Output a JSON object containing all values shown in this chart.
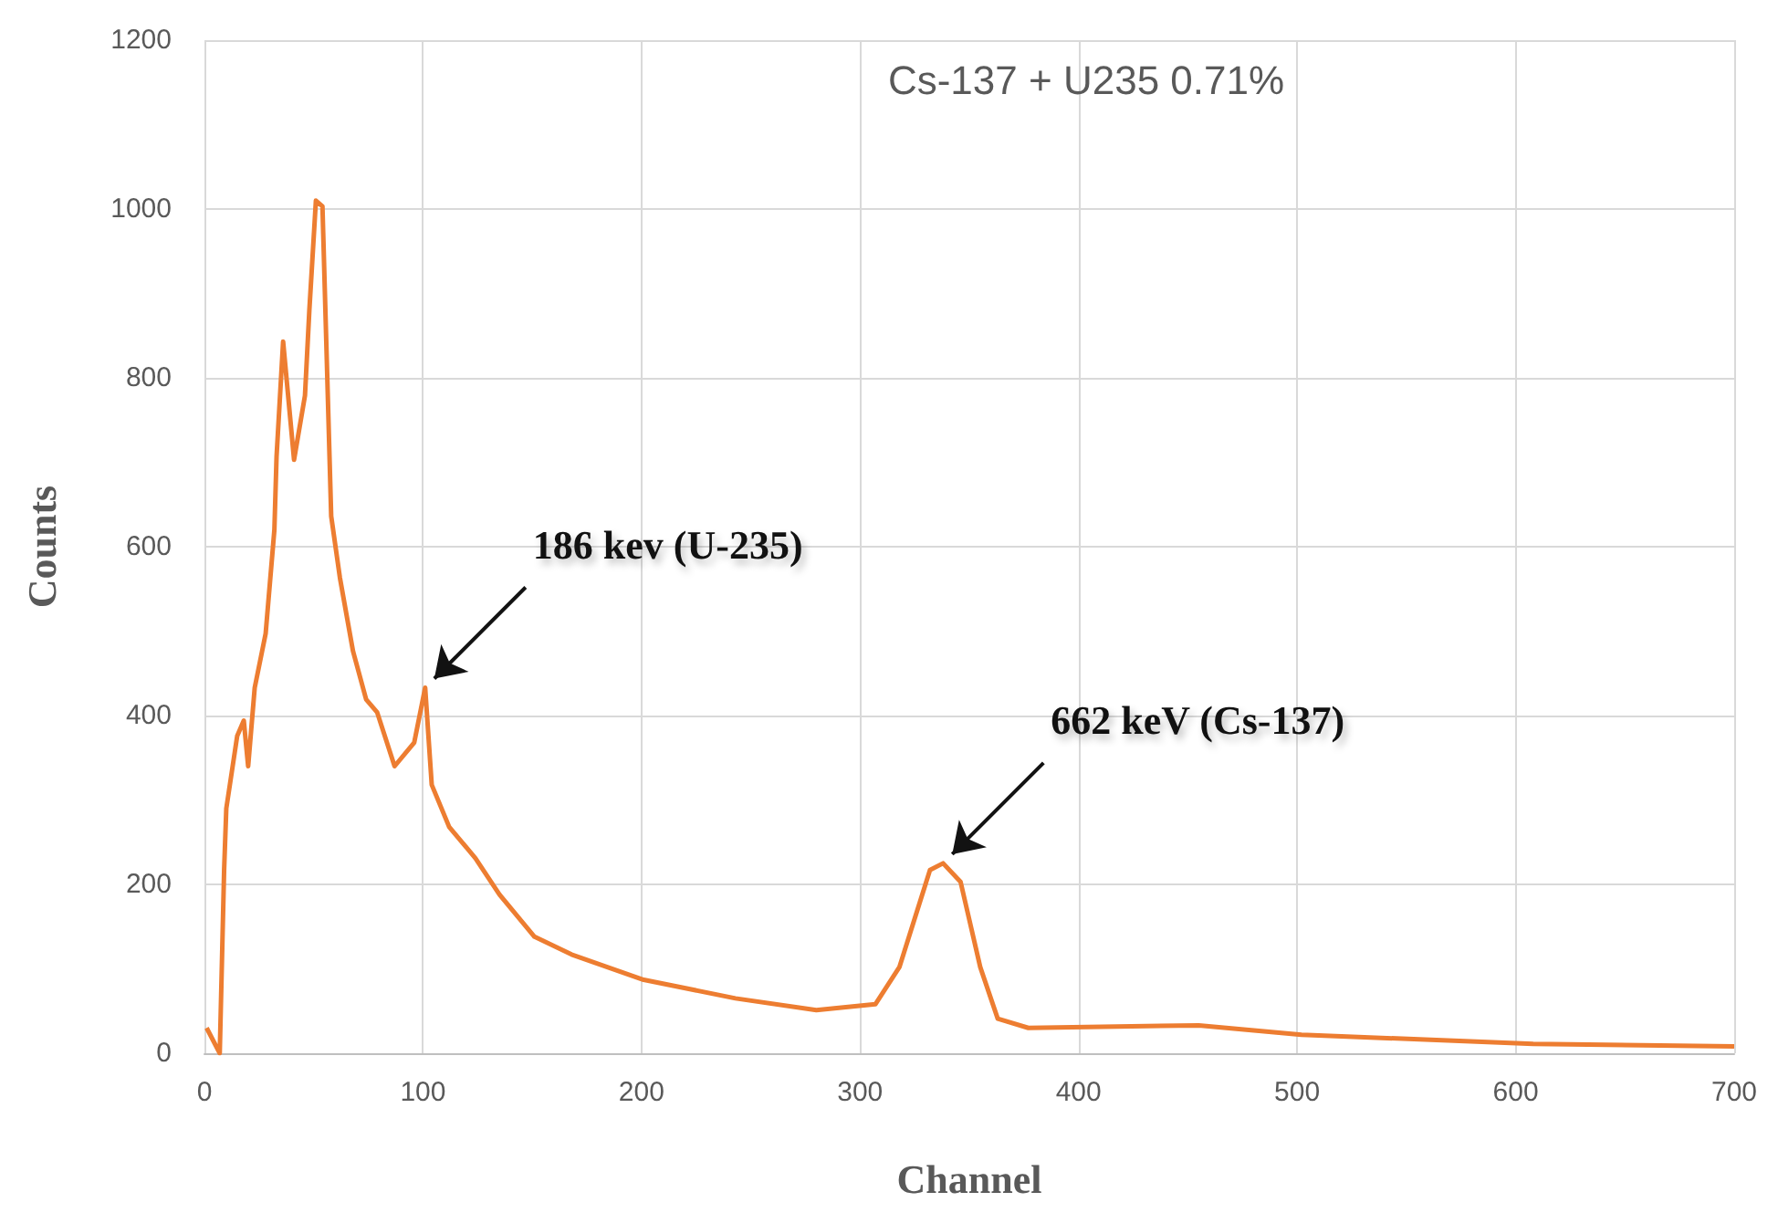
{
  "chart_data": {
    "type": "line",
    "title": "Cs-137 + U235 0.71%",
    "xlabel": "Channel",
    "ylabel": "Counts",
    "annotations": [
      {
        "text": "186 kev (U-235)",
        "x": 101,
        "y": 433
      },
      {
        "text": "662 keV (Cs-137)",
        "x": 338,
        "y": 225
      }
    ],
    "x": [
      1,
      7,
      9,
      10,
      15,
      18,
      20,
      23,
      28,
      32,
      33,
      36,
      41,
      46,
      48,
      51,
      54,
      58,
      62,
      68,
      74,
      79,
      87,
      96,
      101,
      104,
      112,
      124,
      135,
      151,
      168,
      201,
      243,
      280,
      307,
      318,
      332,
      338,
      346,
      355,
      363,
      377,
      455,
      502,
      608,
      700
    ],
    "series": [
      {
        "color": "#ed7d31",
        "values": [
          30,
          0,
          217,
          290,
          376,
          394,
          340,
          433,
          497,
          620,
          707,
          843,
          703,
          779,
          880,
          1010,
          1003,
          636,
          563,
          476,
          419,
          404,
          340,
          368,
          433,
          318,
          268,
          231,
          188,
          138,
          117,
          87,
          65,
          51,
          58,
          102,
          217,
          225,
          203,
          102,
          41,
          30,
          33,
          22,
          11,
          8
        ]
      }
    ],
    "xlim": [
      0,
      700
    ],
    "xticks": [
      0,
      100,
      200,
      300,
      400,
      500,
      600,
      700
    ],
    "ylim": [
      0,
      1200
    ],
    "yticks": [
      0,
      200,
      400,
      600,
      800,
      1000,
      1200
    ],
    "grid": true,
    "marker": "none",
    "line_style": "solid"
  }
}
